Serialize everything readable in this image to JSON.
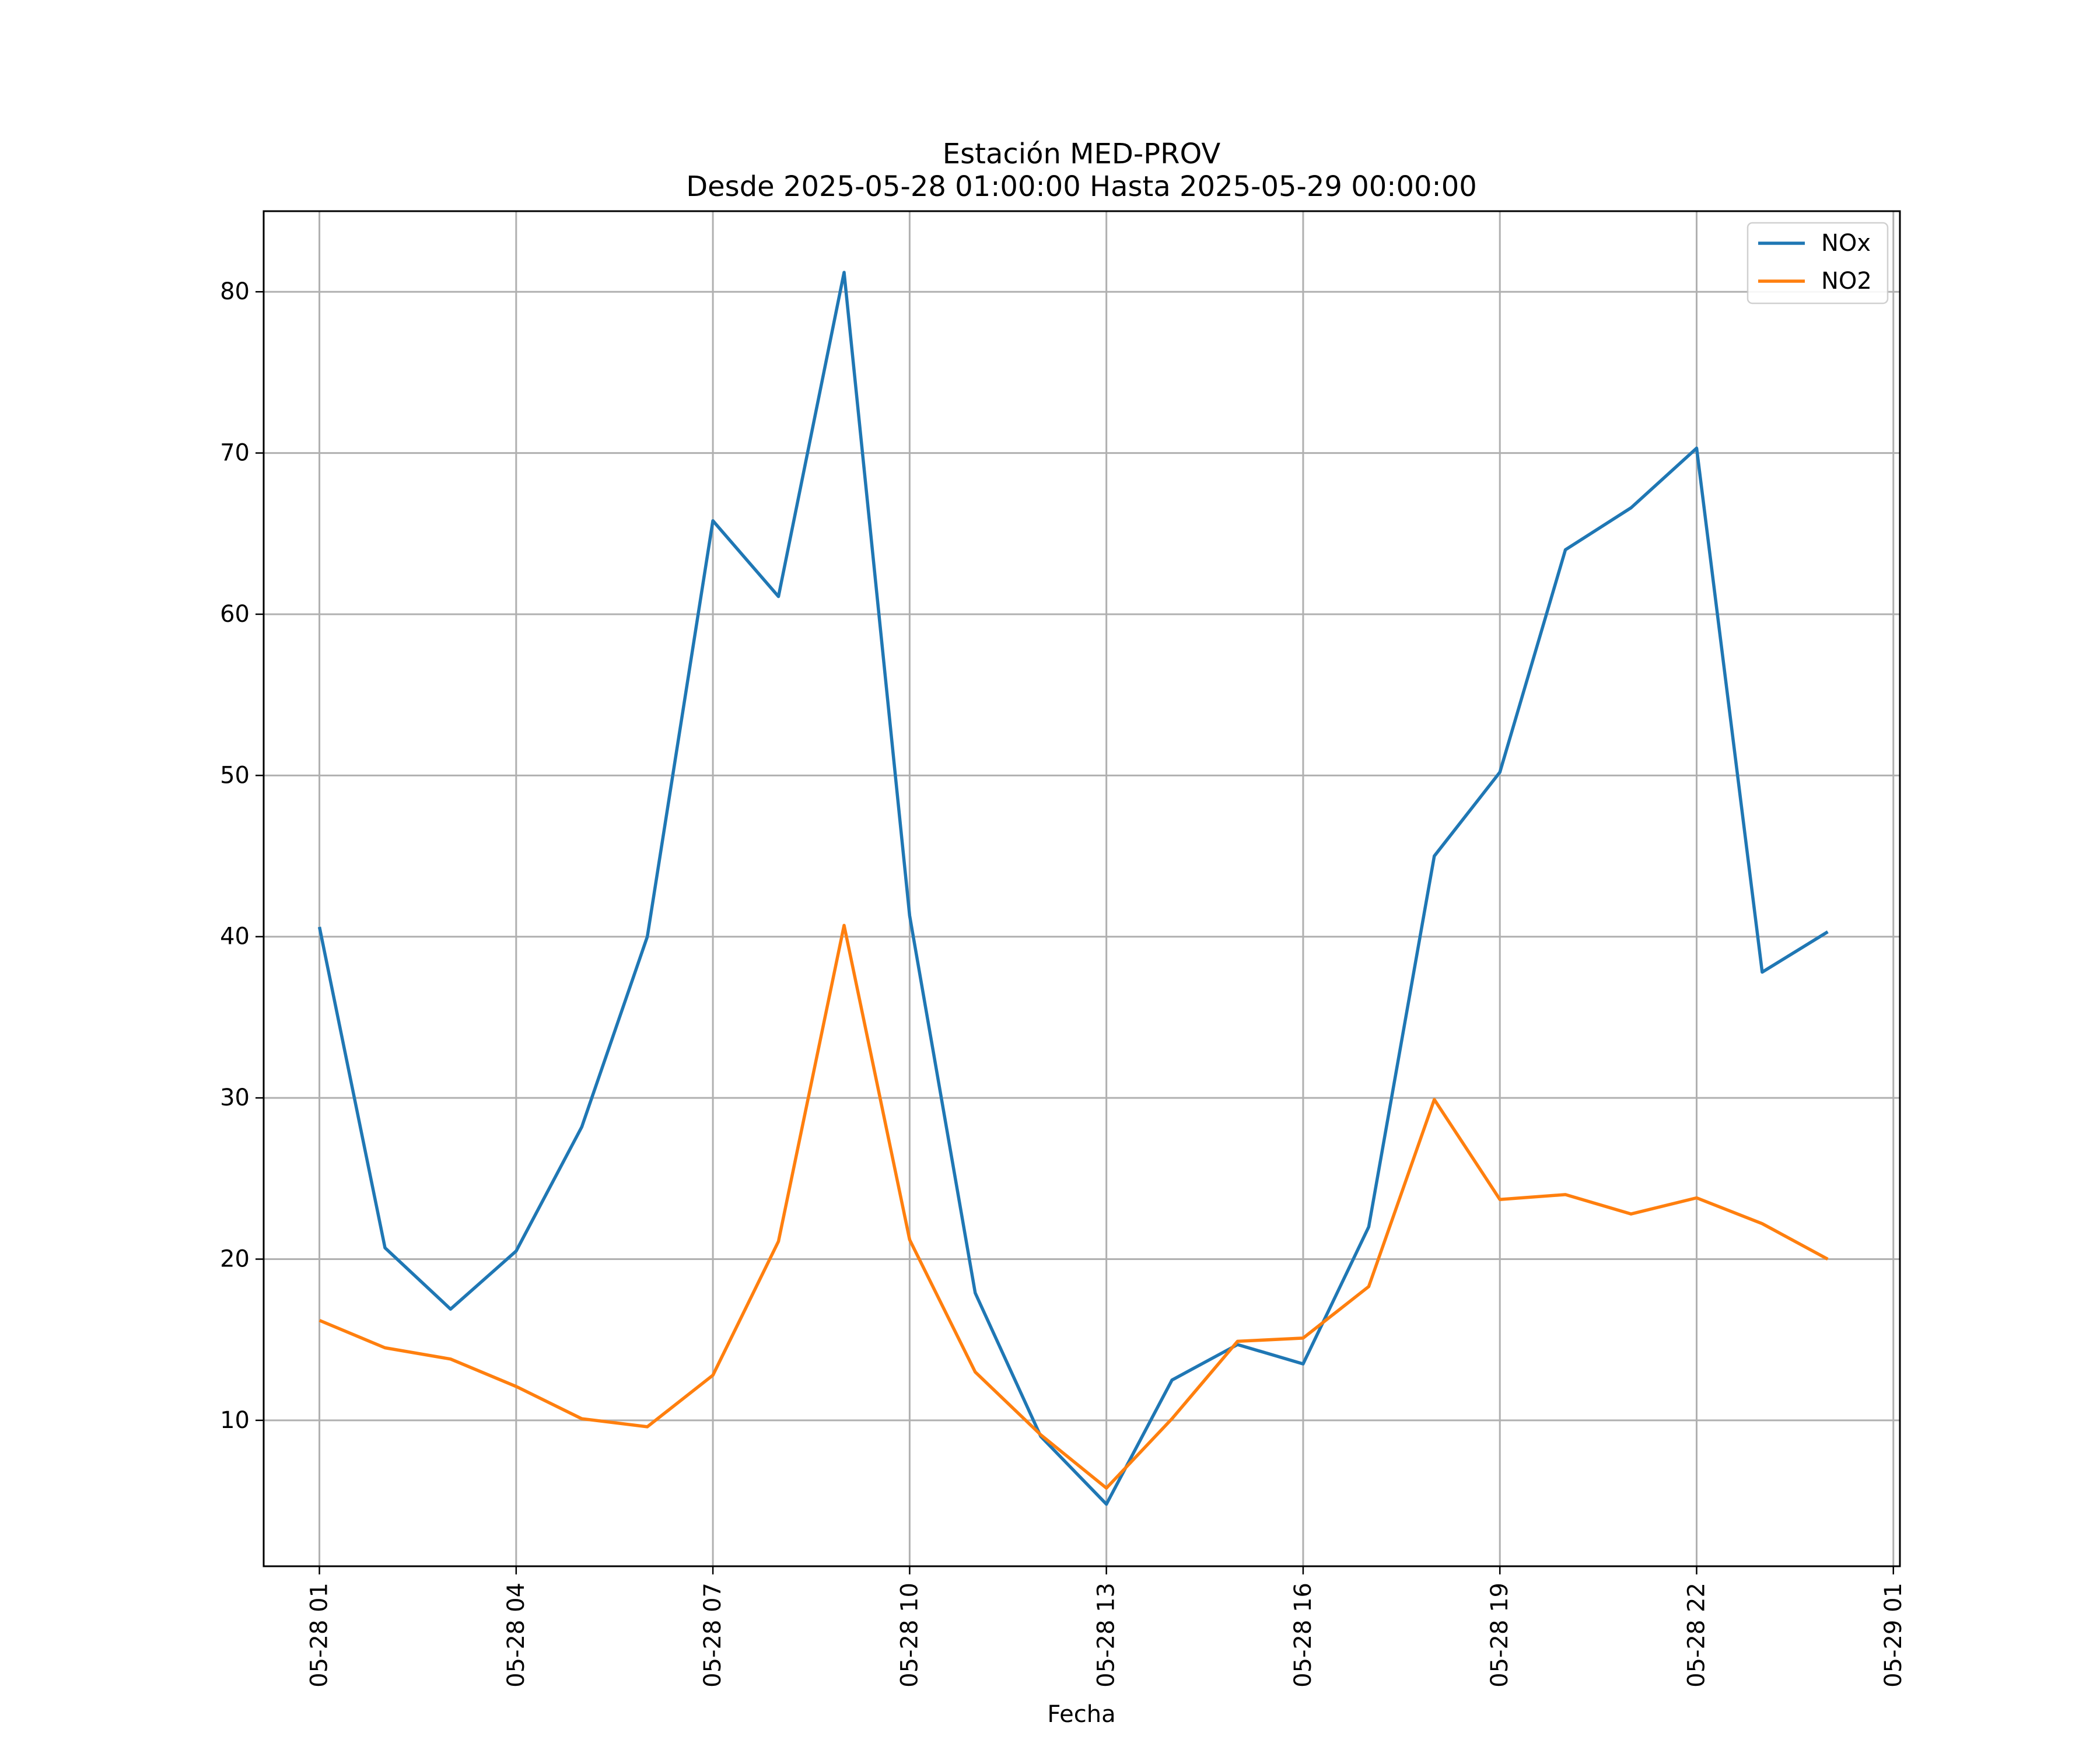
{
  "chart_data": {
    "type": "line",
    "title": "Estación MED-PROV",
    "subtitle": "Desde 2025-05-28 01:00:00 Hasta 2025-05-29 00:00:00",
    "xlabel": "Fecha",
    "ylabel": "",
    "x": [
      "05-28 01",
      "05-28 02",
      "05-28 03",
      "05-28 04",
      "05-28 05",
      "05-28 06",
      "05-28 07",
      "05-28 08",
      "05-28 09",
      "05-28 10",
      "05-28 11",
      "05-28 12",
      "05-28 13",
      "05-28 14",
      "05-28 15",
      "05-28 16",
      "05-28 17",
      "05-28 18",
      "05-28 19",
      "05-28 20",
      "05-28 21",
      "05-28 22",
      "05-28 23",
      "05-29 00"
    ],
    "x_ticks": [
      "05-28 01",
      "05-28 04",
      "05-28 07",
      "05-28 10",
      "05-28 13",
      "05-28 16",
      "05-28 19",
      "05-28 22",
      "05-29 01"
    ],
    "x_range": [
      "05-28 00:09",
      "05-29 01:06"
    ],
    "y_ticks": [
      10,
      20,
      30,
      40,
      50,
      60,
      70,
      80
    ],
    "ylim": [
      0.95,
      85.0
    ],
    "grid": true,
    "legend_position": "top-right",
    "series": [
      {
        "name": "NOx",
        "color": "#1f77b4",
        "values": [
          40.6,
          20.7,
          16.9,
          20.5,
          28.2,
          40.0,
          65.8,
          61.1,
          81.2,
          41.3,
          17.9,
          9.0,
          4.8,
          12.5,
          14.7,
          13.5,
          22.0,
          45.0,
          50.2,
          64.0,
          66.6,
          70.3,
          37.8,
          40.3
        ]
      },
      {
        "name": "NO2",
        "color": "#ff7f0e",
        "values": [
          16.2,
          14.5,
          13.8,
          12.1,
          10.1,
          9.6,
          12.8,
          21.1,
          40.7,
          21.2,
          13.0,
          9.1,
          5.8,
          10.1,
          14.9,
          15.1,
          18.3,
          29.9,
          23.7,
          24.0,
          22.8,
          23.8,
          22.2,
          20.0
        ]
      }
    ]
  }
}
